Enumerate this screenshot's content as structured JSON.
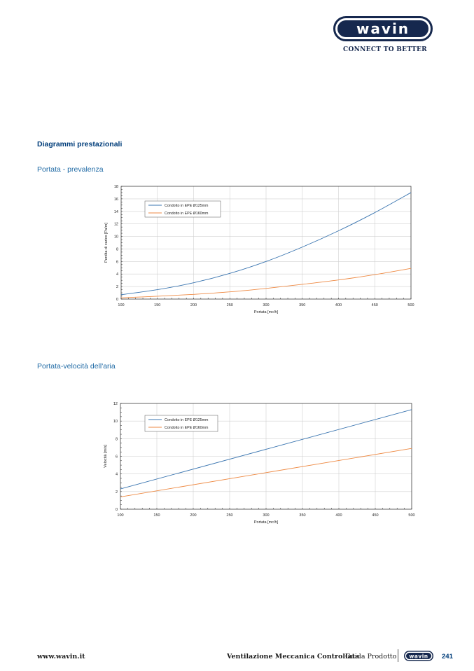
{
  "brand": {
    "logo_text": "wavin",
    "tagline": "CONNECT TO BETTER",
    "colors": {
      "primary": "#16284e",
      "accent": "#1f6aa5"
    }
  },
  "section_title": "Diagrammi prestazionali",
  "chart_titles": [
    "Portata - prevalenza",
    "Portata-velocità dell'aria"
  ],
  "chart_data": [
    {
      "type": "line",
      "title": "",
      "xlabel": "Portata [mc/h]",
      "ylabel": "Perdita di carico [Pa/m]",
      "xlim": [
        100,
        500
      ],
      "ylim": [
        0,
        18
      ],
      "xticks": [
        100,
        150,
        200,
        250,
        300,
        350,
        400,
        450,
        500
      ],
      "yticks": [
        0,
        2,
        4,
        6,
        8,
        10,
        12,
        14,
        16,
        18
      ],
      "grid": true,
      "legend": "top-left",
      "x": [
        100,
        150,
        200,
        250,
        300,
        350,
        400,
        450,
        500
      ],
      "series": [
        {
          "name": "Condotto in EPE Ø125mm",
          "color": "#3a75b0",
          "values": [
            0.7,
            1.5,
            2.6,
            4.1,
            6.0,
            8.3,
            10.9,
            13.8,
            17.0
          ]
        },
        {
          "name": "Condotto in EPE Ø160mm",
          "color": "#ee8a44",
          "values": [
            0.2,
            0.45,
            0.75,
            1.15,
            1.7,
            2.35,
            3.05,
            3.9,
            4.9
          ]
        }
      ]
    },
    {
      "type": "line",
      "title": "",
      "xlabel": "Portata [mc/h]",
      "ylabel": "Velocità [m/s]",
      "xlim": [
        100,
        500
      ],
      "ylim": [
        0,
        12
      ],
      "xticks": [
        100,
        150,
        200,
        250,
        300,
        350,
        400,
        450,
        500
      ],
      "yticks": [
        0,
        2,
        4,
        6,
        8,
        10,
        12
      ],
      "grid": true,
      "legend": "top-left",
      "x": [
        100,
        500
      ],
      "series": [
        {
          "name": "Condotto in EPE Ø125mm",
          "color": "#3a75b0",
          "values": [
            2.3,
            11.3
          ]
        },
        {
          "name": "Condotto in EPE Ø160mm",
          "color": "#ee8a44",
          "values": [
            1.4,
            6.9
          ]
        }
      ]
    }
  ],
  "footer": {
    "url": "www.wavin.it",
    "title": "Ventilazione Meccanica Controllata",
    "subtitle": "Guida Prodotto",
    "logo_text": "wavin",
    "page_number": "241"
  }
}
